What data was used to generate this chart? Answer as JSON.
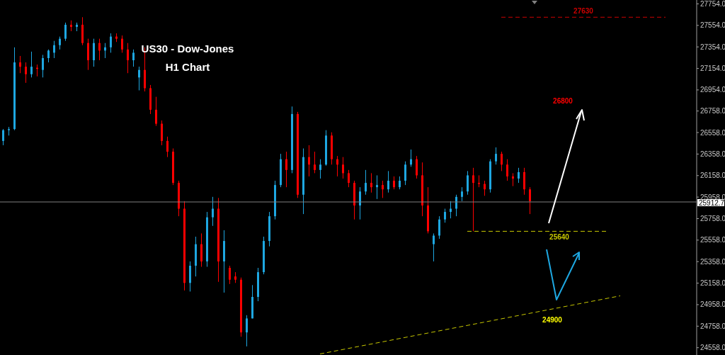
{
  "chart_data": {
    "type": "candlestick",
    "title": "US30 - Dow-Jones",
    "subtitle": "H1 Chart",
    "categories": [
      null,
      null,
      null,
      null,
      null,
      null,
      null,
      null,
      null,
      null,
      null,
      null,
      null,
      null,
      null,
      null,
      null,
      null,
      null,
      null,
      null,
      null,
      null,
      null,
      null,
      null,
      null,
      null,
      null,
      null,
      null,
      null,
      null,
      null,
      null,
      null,
      null,
      null,
      null,
      null,
      null,
      null,
      null,
      null,
      null,
      null,
      null,
      null,
      null,
      null,
      null,
      null,
      null,
      null,
      null,
      null,
      null,
      null,
      null,
      null,
      null,
      null,
      null,
      null,
      null,
      null,
      null,
      null,
      null,
      null,
      null,
      null,
      null,
      null,
      null,
      null,
      null,
      null,
      null,
      null,
      null,
      null,
      null,
      null,
      null,
      null,
      null,
      null,
      null,
      null,
      null,
      null,
      null,
      null,
      null,
      null,
      null,
      null,
      null,
      null,
      null,
      null,
      null,
      null,
      null,
      null,
      null,
      null,
      null,
      null,
      null,
      null,
      null,
      null,
      null,
      null,
      null,
      null,
      null,
      null,
      null,
      null,
      null
    ],
    "ohlc": [
      [
        26480,
        26590,
        26440,
        26580
      ],
      [
        26580,
        26610,
        26530,
        26590
      ],
      [
        26590,
        27350,
        26580,
        27210
      ],
      [
        27210,
        27270,
        27110,
        27170
      ],
      [
        27170,
        27210,
        27020,
        27100
      ],
      [
        27100,
        27310,
        27070,
        27170
      ],
      [
        27160,
        27190,
        27080,
        27150
      ],
      [
        27140,
        27280,
        27070,
        27250
      ],
      [
        27250,
        27330,
        27210,
        27320
      ],
      [
        27300,
        27410,
        27250,
        27370
      ],
      [
        27370,
        27450,
        27330,
        27430
      ],
      [
        27430,
        27580,
        27410,
        27560
      ],
      [
        27560,
        27600,
        27500,
        27540
      ],
      [
        27540,
        27580,
        27500,
        27560
      ],
      [
        27560,
        27630,
        27370,
        27390
      ],
      [
        27390,
        27430,
        27140,
        27230
      ],
      [
        27230,
        27430,
        27170,
        27390
      ],
      [
        27390,
        27430,
        27230,
        27320
      ],
      [
        27320,
        27390,
        27250,
        27350
      ],
      [
        27350,
        27480,
        27300,
        27450
      ],
      [
        27450,
        27480,
        27400,
        27430
      ],
      [
        27430,
        27460,
        27300,
        27330
      ],
      [
        27330,
        27390,
        27110,
        27230
      ],
      [
        27230,
        27330,
        27170,
        27300
      ],
      [
        27070,
        27170,
        26950,
        27140
      ],
      [
        27140,
        27350,
        26940,
        26970
      ],
      [
        26970,
        27000,
        26730,
        26770
      ],
      [
        26770,
        26890,
        26620,
        26640
      ],
      [
        26640,
        26670,
        26440,
        26480
      ],
      [
        26480,
        26520,
        26330,
        26380
      ],
      [
        26380,
        26410,
        26070,
        26090
      ],
      [
        26090,
        26110,
        25780,
        25850
      ],
      [
        25850,
        25920,
        25090,
        25160
      ],
      [
        25160,
        25360,
        25080,
        25320
      ],
      [
        25320,
        25590,
        25220,
        25520
      ],
      [
        25520,
        25620,
        25310,
        25360
      ],
      [
        25360,
        25820,
        25310,
        25770
      ],
      [
        25770,
        25960,
        25690,
        25850
      ],
      [
        25850,
        25950,
        25170,
        25360
      ],
      [
        25360,
        25650,
        25070,
        25550
      ],
      [
        25300,
        25320,
        25150,
        25190
      ],
      [
        25220,
        25260,
        25160,
        25190
      ],
      [
        25190,
        25210,
        24660,
        24700
      ],
      [
        24700,
        24860,
        24570,
        24830
      ],
      [
        24830,
        25140,
        24830,
        25030
      ],
      [
        25030,
        25300,
        24990,
        25260
      ],
      [
        25260,
        25590,
        25240,
        25550
      ],
      [
        25550,
        25820,
        25500,
        25780
      ],
      [
        25780,
        26110,
        25750,
        26070
      ],
      [
        26070,
        26360,
        26050,
        26310
      ],
      [
        26310,
        26380,
        26050,
        26210
      ],
      [
        26210,
        26800,
        26180,
        26730
      ],
      [
        26730,
        26750,
        25950,
        25980
      ],
      [
        25980,
        26410,
        25800,
        26330
      ],
      [
        26330,
        26440,
        26150,
        26260
      ],
      [
        26260,
        26380,
        26180,
        26210
      ],
      [
        26210,
        26310,
        26130,
        26260
      ],
      [
        26260,
        26580,
        26250,
        26530
      ],
      [
        26530,
        26560,
        26260,
        26310
      ],
      [
        26310,
        26340,
        26150,
        26260
      ],
      [
        26260,
        26330,
        26130,
        26180
      ],
      [
        26180,
        26210,
        26050,
        26090
      ],
      [
        26090,
        26110,
        25750,
        25880
      ],
      [
        25880,
        26050,
        25750,
        26010
      ],
      [
        26010,
        26210,
        25980,
        26090
      ],
      [
        26090,
        26180,
        26000,
        26050
      ],
      [
        26050,
        26160,
        25940,
        26070
      ],
      [
        26070,
        26110,
        25950,
        26030
      ],
      [
        26030,
        26200,
        26000,
        26110
      ],
      [
        26110,
        26150,
        26030,
        26050
      ],
      [
        26050,
        26150,
        26030,
        26110
      ],
      [
        26110,
        26290,
        26070,
        26260
      ],
      [
        26260,
        26400,
        26240,
        26310
      ],
      [
        26310,
        26340,
        26130,
        26160
      ],
      [
        26160,
        26280,
        25780,
        25880
      ],
      [
        25880,
        26050,
        25620,
        25640
      ],
      [
        25520,
        25620,
        25360,
        25600
      ],
      [
        25600,
        25780,
        25570,
        25750
      ],
      [
        25750,
        25850,
        25720,
        25820
      ],
      [
        25820,
        25920,
        25760,
        25850
      ],
      [
        25850,
        25980,
        25780,
        25960
      ],
      [
        25960,
        26050,
        25920,
        26010
      ],
      [
        26010,
        26200,
        25980,
        26160
      ],
      [
        26160,
        26230,
        25640,
        26090
      ],
      [
        26090,
        26160,
        26050,
        26080
      ],
      [
        26080,
        26110,
        25970,
        26030
      ],
      [
        26030,
        26310,
        26000,
        26290
      ],
      [
        26290,
        26420,
        26260,
        26360
      ],
      [
        26360,
        26380,
        26200,
        26260
      ],
      [
        26260,
        26310,
        26110,
        26150
      ],
      [
        26150,
        26180,
        26060,
        26130
      ],
      [
        26130,
        26230,
        26090,
        26190
      ],
      [
        26190,
        26230,
        25980,
        26030
      ],
      [
        26030,
        26050,
        25800,
        25920
      ],
      null,
      null,
      null,
      null,
      null,
      null,
      null,
      null,
      null,
      null,
      null,
      null,
      null,
      null,
      null,
      null,
      null,
      null,
      null,
      null,
      null,
      null,
      null,
      null,
      null,
      null,
      null,
      null,
      null
    ],
    "colors": [
      "#1ea7e1",
      "#1ea7e1",
      "#1ea7e1",
      "#ff0000",
      "#ff0000",
      "#1ea7e1",
      "#ff0000",
      "#1ea7e1",
      "#1ea7e1",
      "#1ea7e1",
      "#1ea7e1",
      "#1ea7e1",
      "#ff0000",
      "#1ea7e1",
      "#ff0000",
      "#ff0000",
      "#1ea7e1",
      "#ff0000",
      "#1ea7e1",
      "#1ea7e1",
      "#ff0000",
      "#ff0000",
      "#ff0000",
      "#1ea7e1",
      "#1ea7e1",
      "#ff0000",
      "#ff0000",
      "#ff0000",
      "#ff0000",
      "#ff0000",
      "#ff0000",
      "#ff0000",
      "#ff0000",
      "#1ea7e1",
      "#1ea7e1",
      "#ff0000",
      "#1ea7e1",
      "#1ea7e1",
      "#ff0000",
      "#1ea7e1",
      "#ff0000",
      "#ff0000",
      "#ff0000",
      "#1ea7e1",
      "#1ea7e1",
      "#1ea7e1",
      "#1ea7e1",
      "#1ea7e1",
      "#1ea7e1",
      "#1ea7e1",
      "#ff0000",
      "#1ea7e1",
      "#ff0000",
      "#1ea7e1",
      "#ff0000",
      "#ff0000",
      "#1ea7e1",
      "#1ea7e1",
      "#ff0000",
      "#ff0000",
      "#ff0000",
      "#ff0000",
      "#ff0000",
      "#1ea7e1",
      "#1ea7e1",
      "#ff0000",
      "#1ea7e1",
      "#ff0000",
      "#1ea7e1",
      "#ff0000",
      "#1ea7e1",
      "#1ea7e1",
      "#1ea7e1",
      "#ff0000",
      "#ff0000",
      "#ff0000",
      "#1ea7e1",
      "#1ea7e1",
      "#1ea7e1",
      "#1ea7e1",
      "#1ea7e1",
      "#1ea7e1",
      "#1ea7e1",
      "#ff0000",
      "#ff0000",
      "#ff0000",
      "#1ea7e1",
      "#1ea7e1",
      "#ff0000",
      "#ff0000",
      "#ff0000",
      "#1ea7e1",
      "#ff0000",
      "#ff0000",
      null,
      null,
      null,
      null,
      null,
      null,
      null,
      null,
      null,
      null,
      null,
      null,
      null,
      null,
      null,
      null,
      null,
      null,
      null,
      null,
      null,
      null,
      null,
      null,
      null,
      null,
      null,
      null,
      null
    ],
    "series": [
      {
        "type": "line",
        "color": "#c8c800",
        "line_style": "dashed",
        "values": [
          null,
          null,
          null,
          null,
          null,
          null,
          null,
          null,
          null,
          null,
          null,
          null,
          null,
          null,
          null,
          null,
          null,
          null,
          null,
          null,
          null,
          null,
          null,
          null,
          null,
          null,
          null,
          null,
          null,
          null,
          null,
          null,
          null,
          null,
          null,
          null,
          null,
          null,
          null,
          null,
          null,
          null,
          null,
          null,
          null,
          null,
          null,
          null,
          null,
          null,
          null,
          null,
          null,
          null,
          null,
          null,
          24500,
          null,
          null,
          null,
          null,
          null,
          null,
          null,
          null,
          null,
          null,
          null,
          null,
          null,
          null,
          null,
          null,
          null,
          null,
          null,
          null,
          null,
          null,
          null,
          null,
          null,
          null,
          null,
          null,
          null,
          null,
          null,
          null,
          null,
          null,
          null,
          null,
          null,
          null,
          null,
          null,
          null,
          null,
          null,
          null,
          null,
          null,
          null,
          null,
          null,
          null,
          null,
          null,
          25040,
          null,
          null,
          null,
          null,
          null,
          null,
          null,
          null,
          null,
          null,
          null,
          null,
          null
        ]
      }
    ],
    "ylim": [
      24490,
      27790
    ],
    "yticks": [
      {
        "value": 27754,
        "label": "27754.0"
      },
      {
        "value": 27554,
        "label": "27554.0"
      },
      {
        "value": 27354,
        "label": "27354.0"
      },
      {
        "value": 27154,
        "label": "27154.0"
      },
      {
        "value": 26954,
        "label": "26954.0"
      },
      {
        "value": 26758,
        "label": "26758.0"
      },
      {
        "value": 26558,
        "label": "26558.0"
      },
      {
        "value": 26358,
        "label": "26358.0"
      },
      {
        "value": 26158,
        "label": "26158.0"
      },
      {
        "value": 25958,
        "label": "25958.0"
      },
      {
        "value": 25758,
        "label": "25758.0"
      },
      {
        "value": 25558,
        "label": "25558.0"
      },
      {
        "value": 25358,
        "label": "25358.0"
      },
      {
        "value": 25158,
        "label": "25158.0"
      },
      {
        "value": 24958,
        "label": "24958.0"
      },
      {
        "value": 24758,
        "label": "24758.0"
      },
      {
        "value": 24558,
        "label": "24558.0"
      }
    ],
    "tick_labels": "y",
    "ref_lines": [
      {
        "axis": "y",
        "value": 27630,
        "label": "27630",
        "color": "#cc0000",
        "line_style": "dashed"
      },
      {
        "axis": "y",
        "value": 25640,
        "label": "25640",
        "color": "#c8c800",
        "line_style": "dashed"
      },
      {
        "axis": "y",
        "value": 25912.7,
        "label": "25912.7",
        "color": "#808080",
        "line_style": "solid"
      }
    ],
    "annotations": [
      "26800",
      {
        "text": "24900",
        "y": 24900
      }
    ]
  }
}
